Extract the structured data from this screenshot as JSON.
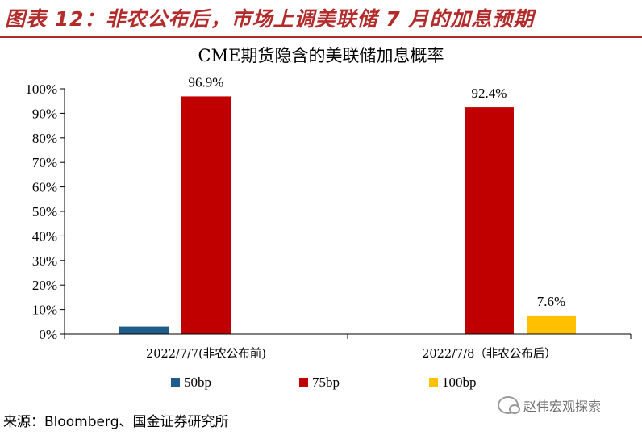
{
  "figure": {
    "title": "图表 12：非农公布后，市场上调美联储 7 月的加息预期",
    "source": "来源：Bloomberg、国金证券研究所",
    "watermark": "赵伟宏观探索",
    "accent_color": "#b32b2b"
  },
  "chart_data": {
    "type": "bar",
    "title": "CME期货隐含的美联储加息概率",
    "categories": [
      "2022/7/7(非农公布前)",
      "2022/7/8（非农公布后）"
    ],
    "series": [
      {
        "name": "50bp",
        "color": "#1f5c8b",
        "values": [
          3.1,
          0
        ],
        "labels": [
          "",
          ""
        ]
      },
      {
        "name": "75bp",
        "color": "#c00000",
        "values": [
          96.9,
          92.4
        ],
        "labels": [
          "96.9%",
          "92.4%"
        ]
      },
      {
        "name": "100bp",
        "color": "#ffc000",
        "values": [
          0,
          7.6
        ],
        "labels": [
          "",
          "7.6%"
        ]
      }
    ],
    "ylim": [
      0,
      100
    ],
    "yticks": [
      0,
      10,
      20,
      30,
      40,
      50,
      60,
      70,
      80,
      90,
      100
    ],
    "ytick_labels": [
      "0%",
      "10%",
      "20%",
      "30%",
      "40%",
      "50%",
      "60%",
      "70%",
      "80%",
      "90%",
      "100%"
    ],
    "xlabel": "",
    "ylabel": "",
    "grid": false,
    "legend": "bottom"
  }
}
